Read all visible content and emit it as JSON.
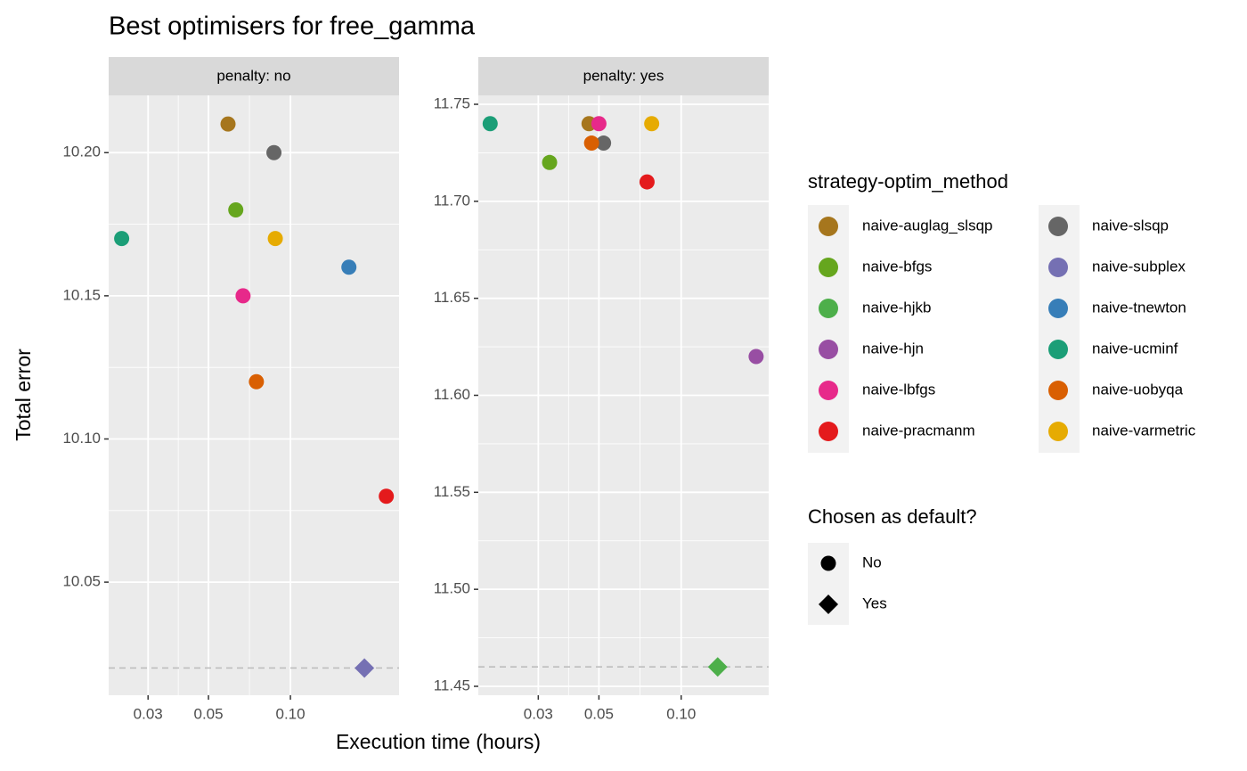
{
  "chart_data": {
    "type": "scatter",
    "title": "Best optimisers for free_gamma",
    "xlabel": "Execution time (hours)",
    "ylabel": "Total error",
    "xscale": "log",
    "grid": true,
    "legend_title": "strategy-optim_method",
    "shape_legend_title": "Chosen as default?",
    "shape_legend": [
      {
        "name": "No",
        "shape": "circle"
      },
      {
        "name": "Yes",
        "shape": "diamond"
      }
    ],
    "panels": [
      {
        "label": "penalty: no",
        "xlim": [
          0.0215,
          0.2506
        ],
        "xticks": [
          0.03,
          0.05,
          {
            "value": 0.1,
            "label": "0.10"
          }
        ],
        "ylim": [
          10.0105,
          10.22
        ],
        "yticks": [
          10.05,
          {
            "value": 10.1,
            "label": "10.10"
          },
          10.15,
          {
            "value": 10.2,
            "label": "10.20"
          }
        ],
        "reference_line": 10.02
      },
      {
        "label": "penalty: yes",
        "xlim": [
          0.0181,
          0.209
        ],
        "xticks": [
          0.03,
          0.05,
          {
            "value": 0.1,
            "label": "0.10"
          }
        ],
        "ylim": [
          11.4454,
          11.7546
        ],
        "yticks": [
          11.45,
          {
            "value": 11.5,
            "label": "11.50"
          },
          11.55,
          {
            "value": 11.6,
            "label": "11.60"
          },
          11.65,
          {
            "value": 11.7,
            "label": "11.70"
          },
          11.75
        ],
        "reference_line": 11.46
      }
    ],
    "series": [
      {
        "name": "naive-auglag_slsqp",
        "color": "#A6761D",
        "x": [
          0.059,
          0.046
        ],
        "values": [
          10.21,
          11.74
        ],
        "default": [
          false,
          false
        ]
      },
      {
        "name": "naive-bfgs",
        "color": "#66A61E",
        "x": [
          0.063,
          0.033
        ],
        "values": [
          10.18,
          11.72
        ],
        "default": [
          false,
          false
        ]
      },
      {
        "name": "naive-hjkb",
        "color": "#4DAF4A",
        "x": [
          null,
          0.136
        ],
        "values": [
          null,
          11.46
        ],
        "default": [
          false,
          true
        ]
      },
      {
        "name": "naive-hjn",
        "color": "#984EA3",
        "x": [
          null,
          0.188
        ],
        "values": [
          null,
          11.62
        ],
        "default": [
          false,
          false
        ]
      },
      {
        "name": "naive-lbfgs",
        "color": "#E7298A",
        "x": [
          0.067,
          0.05
        ],
        "values": [
          10.15,
          11.74
        ],
        "default": [
          false,
          false
        ]
      },
      {
        "name": "naive-pracmanm",
        "color": "#E41A1C",
        "x": [
          0.225,
          0.075
        ],
        "values": [
          10.08,
          11.71
        ],
        "default": [
          false,
          false
        ]
      },
      {
        "name": "naive-slsqp",
        "color": "#666666",
        "x": [
          0.087,
          0.052
        ],
        "values": [
          10.2,
          11.73
        ],
        "default": [
          false,
          false
        ]
      },
      {
        "name": "naive-subplex",
        "color": "#7570B3",
        "x": [
          0.187,
          null
        ],
        "values": [
          10.02,
          null
        ],
        "default": [
          true,
          false
        ]
      },
      {
        "name": "naive-tnewton",
        "color": "#377EB8",
        "x": [
          0.164,
          null
        ],
        "values": [
          10.16,
          null
        ],
        "default": [
          false,
          false
        ]
      },
      {
        "name": "naive-ucminf",
        "color": "#1B9E77",
        "x": [
          0.024,
          0.02
        ],
        "values": [
          10.17,
          11.74
        ],
        "default": [
          false,
          false
        ]
      },
      {
        "name": "naive-uobyqa",
        "color": "#D95F02",
        "x": [
          0.075,
          0.047
        ],
        "values": [
          10.12,
          11.73
        ],
        "default": [
          false,
          false
        ]
      },
      {
        "name": "naive-varmetric",
        "color": "#E6AB02",
        "x": [
          0.088,
          0.078
        ],
        "values": [
          10.17,
          11.74
        ],
        "default": [
          false,
          false
        ]
      }
    ]
  }
}
